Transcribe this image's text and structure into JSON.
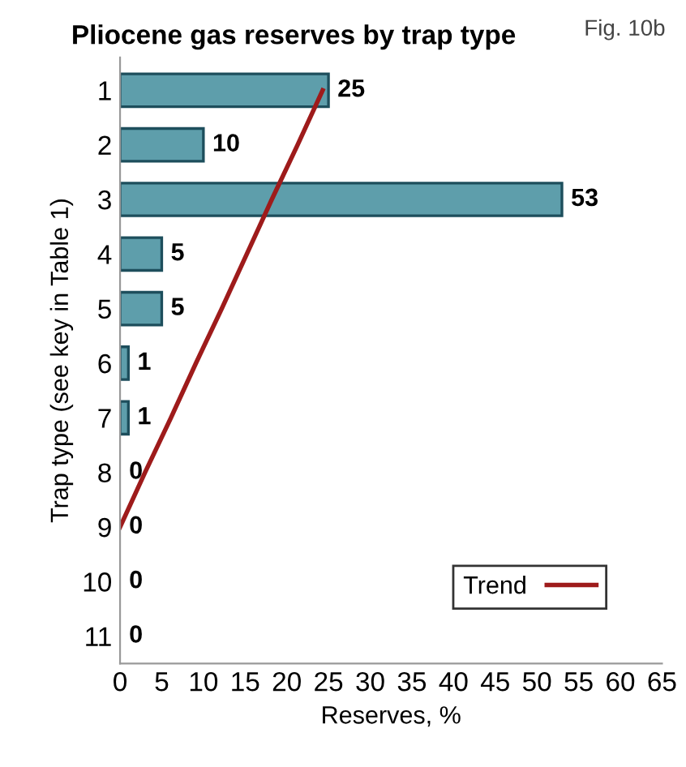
{
  "chart_data": {
    "type": "bar",
    "orientation": "horizontal",
    "title": "Pliocene gas reserves by trap type",
    "annotations": [
      "Fig. 10b"
    ],
    "xlabel": "Reserves, %",
    "ylabel": "Trap type (see key in Table 1)",
    "categories": [
      "1",
      "2",
      "3",
      "4",
      "5",
      "6",
      "7",
      "8",
      "9",
      "10",
      "11"
    ],
    "series": [
      {
        "color": "#5e9eab",
        "values": [
          25,
          10,
          53,
          5,
          5,
          1,
          1,
          0,
          0,
          0,
          0
        ],
        "value_labels": [
          "25",
          "10",
          "53",
          "5",
          "5",
          "1",
          "1",
          "0",
          "0",
          "0",
          "0"
        ]
      },
      {
        "name": "Trend",
        "type": "line",
        "color": "#9e1b1b",
        "values": [
          24.3,
          21.3,
          18.2,
          15.2,
          12.2,
          9.1,
          6.1,
          3.0,
          0,
          null,
          null
        ]
      }
    ],
    "xlim": [
      0,
      65
    ],
    "xticks": [
      0,
      5,
      10,
      15,
      20,
      25,
      30,
      35,
      40,
      45,
      50,
      55,
      60,
      65
    ],
    "grid": false,
    "legend": "bottom right"
  }
}
